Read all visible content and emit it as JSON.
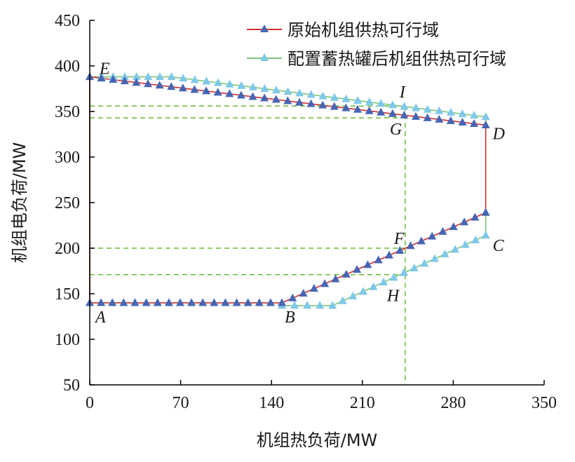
{
  "chart_data": {
    "type": "line",
    "xlabel": "机组热负荷/MW",
    "ylabel": "机组电负荷/MW",
    "xlim": [
      0,
      350
    ],
    "ylim": [
      50,
      450
    ],
    "xticks": [
      0,
      70,
      140,
      210,
      280,
      350
    ],
    "yticks": [
      50,
      100,
      150,
      200,
      250,
      300,
      350,
      400,
      450
    ],
    "grid": false,
    "legend_position": "top-right",
    "series": [
      {
        "name": "原始机组供热可行域",
        "line_color": "#d42d2d",
        "marker_color": "#4566b4",
        "points": [
          [
            0,
            388
          ],
          [
            305,
            335
          ],
          [
            305,
            239
          ],
          [
            148,
            140
          ],
          [
            0,
            140
          ],
          [
            0,
            388
          ]
        ]
      },
      {
        "name": "配置蓄热罐后机组供热可行域",
        "line_color": "#7cc576",
        "marker_color": "#7ec8ea",
        "points": [
          [
            0,
            388
          ],
          [
            63,
            388
          ],
          [
            305,
            344
          ],
          [
            305,
            214
          ],
          [
            187,
            137
          ],
          [
            148,
            137
          ],
          [
            148,
            140
          ],
          [
            0,
            140
          ],
          [
            0,
            388
          ]
        ]
      }
    ],
    "reference_lines": {
      "color": "#66bb33",
      "horizontal": [
        356,
        343,
        200,
        171
      ],
      "vertical": [
        243
      ]
    },
    "annotations": [
      {
        "label": "A",
        "x": 0,
        "y": 140
      },
      {
        "label": "B",
        "x": 148,
        "y": 140
      },
      {
        "label": "C",
        "x": 305,
        "y": 214
      },
      {
        "label": "D",
        "x": 305,
        "y": 335
      },
      {
        "label": "E",
        "x": 0,
        "y": 388
      },
      {
        "label": "F",
        "x": 243,
        "y": 200
      },
      {
        "label": "G",
        "x": 243,
        "y": 343
      },
      {
        "label": "H",
        "x": 243,
        "y": 171
      },
      {
        "label": "I",
        "x": 243,
        "y": 356
      }
    ]
  }
}
